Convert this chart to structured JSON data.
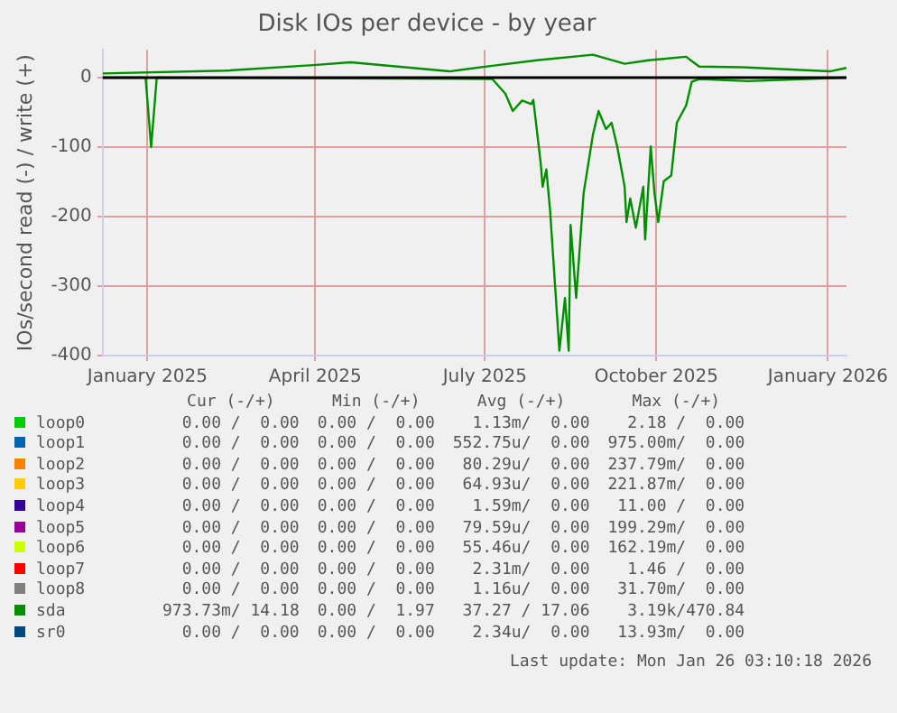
{
  "chart_data": {
    "type": "line",
    "title": "Disk IOs per device - by year",
    "ylabel": "IOs/second read (-) / write (+)",
    "xlim": [
      "2024-12-23",
      "2026-01-26"
    ],
    "xticks": [
      {
        "value": "2025-01-16",
        "label": "January 2025"
      },
      {
        "value": "2025-04-16",
        "label": "April 2025"
      },
      {
        "value": "2025-07-16",
        "label": "July 2025"
      },
      {
        "value": "2025-10-16",
        "label": "October 2025"
      },
      {
        "value": "2026-01-16",
        "label": "January 2026"
      }
    ],
    "ylim": [
      -400,
      40
    ],
    "yticks": [
      -400,
      -300,
      -200,
      -100,
      0
    ],
    "grid": true,
    "legend": "bottom",
    "marker": "none",
    "line_style": "solid",
    "ref_lines": [
      {
        "axis": "y",
        "value": 0,
        "color": "#000000"
      }
    ],
    "series": [
      {
        "name": "loop0",
        "color": "#00cc00"
      },
      {
        "name": "loop1",
        "color": "#0066b3"
      },
      {
        "name": "loop2",
        "color": "#ff8000"
      },
      {
        "name": "loop3",
        "color": "#ffcc00"
      },
      {
        "name": "loop4",
        "color": "#330099"
      },
      {
        "name": "loop5",
        "color": "#990099"
      },
      {
        "name": "loop6",
        "color": "#ccff00"
      },
      {
        "name": "loop7",
        "color": "#ff0000"
      },
      {
        "name": "loop8",
        "color": "#808080"
      },
      {
        "name": "sda",
        "color": "#008f00",
        "x": [
          "2024-12-23",
          "2025-01-15",
          "2025-01-18",
          "2025-01-21",
          "2025-07-20",
          "2025-07-27",
          "2025-07-31",
          "2025-08-05",
          "2025-08-10",
          "2025-08-11",
          "2025-08-15",
          "2025-08-16",
          "2025-08-18",
          "2025-08-20",
          "2025-08-25",
          "2025-08-28",
          "2025-08-30",
          "2025-08-31",
          "2025-09-03",
          "2025-09-07",
          "2025-09-12",
          "2025-09-15",
          "2025-09-19",
          "2025-09-22",
          "2025-09-25",
          "2025-09-29",
          "2025-09-30",
          "2025-10-02",
          "2025-10-05",
          "2025-10-09",
          "2025-10-10",
          "2025-10-13",
          "2025-10-15",
          "2025-10-17",
          "2025-10-20",
          "2025-10-24",
          "2025-10-27",
          "2025-11-01",
          "2025-11-04",
          "2025-11-08",
          "2025-12-04",
          "2026-01-26"
        ],
        "values": [
          0,
          0,
          -100,
          0,
          -2,
          -23,
          -48,
          -33,
          -38,
          -32,
          -124,
          -157,
          -132,
          -191,
          -393,
          -317,
          -393,
          -212,
          -317,
          -166,
          -82,
          -48,
          -74,
          -65,
          -99,
          -157,
          -208,
          -174,
          -216,
          -157,
          -233,
          -99,
          -166,
          -208,
          -149,
          -141,
          -65,
          -40,
          -6,
          -2,
          -5,
          0
        ]
      },
      {
        "color": "#008f00",
        "x": [
          "2024-12-23",
          "2025-02-27",
          "2025-04-15",
          "2025-05-05",
          "2025-06-27",
          "2025-07-20",
          "2025-08-13",
          "2025-09-12",
          "2025-09-29",
          "2025-10-12",
          "2025-11-01",
          "2025-11-08",
          "2025-12-01",
          "2026-01-17",
          "2026-01-26"
        ],
        "values": [
          6,
          10,
          18,
          22,
          9,
          17,
          25,
          33,
          20,
          25,
          30,
          16,
          15,
          9,
          14
        ]
      },
      {
        "name": "sr0",
        "color": "#00487d"
      }
    ],
    "annotations": [
      "Cur (-/+)",
      "Min (-/+)",
      "Avg (-/+)",
      "Max (-/+)",
      "0.00 /  0.00",
      "0.00 /  0.00",
      "1.13m/  0.00",
      "2.18 /  0.00",
      "0.00 /  0.00",
      "0.00 /  0.00",
      "552.75u/  0.00",
      "975.00m/  0.00",
      "0.00 /  0.00",
      "0.00 /  0.00",
      "80.29u/  0.00",
      "237.79m/  0.00",
      "0.00 /  0.00",
      "0.00 /  0.00",
      "64.93u/  0.00",
      "221.87m/  0.00",
      "0.00 /  0.00",
      "0.00 /  0.00",
      "1.59m/  0.00",
      "11.00 /  0.00",
      "0.00 /  0.00",
      "0.00 /  0.00",
      "79.59u/  0.00",
      "199.29m/  0.00",
      "0.00 /  0.00",
      "0.00 /  0.00",
      "55.46u/  0.00",
      "162.19m/  0.00",
      "0.00 /  0.00",
      "0.00 /  0.00",
      "2.31m/  0.00",
      "1.46 /  0.00",
      "0.00 /  0.00",
      "0.00 /  0.00",
      "1.16u/  0.00",
      "31.70m/  0.00",
      "973.73m/ 14.18",
      "0.00 /  1.97",
      "37.27 / 17.06",
      "3.19k/470.84",
      "0.00 /  0.00",
      "0.00 /  0.00",
      "2.34u/  0.00",
      "13.93m/  0.00",
      "Last update: Mon Jan 26 03:10:18 2026"
    ]
  }
}
